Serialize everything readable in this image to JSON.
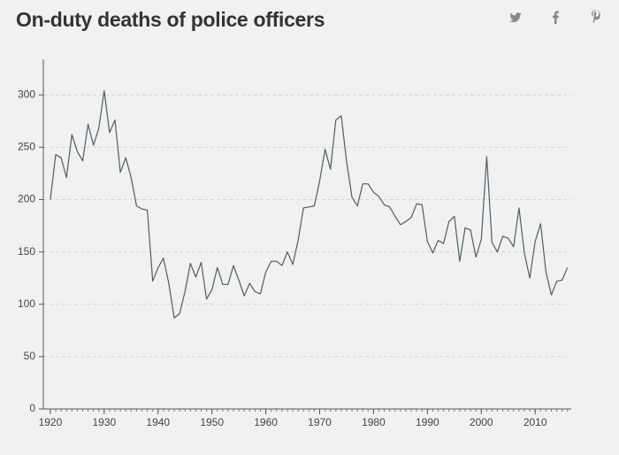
{
  "chart_data": {
    "type": "line",
    "title": "On-duty deaths of police officers",
    "x": [
      1920,
      1921,
      1922,
      1923,
      1924,
      1925,
      1926,
      1927,
      1928,
      1929,
      1930,
      1931,
      1932,
      1933,
      1934,
      1935,
      1936,
      1937,
      1938,
      1939,
      1940,
      1941,
      1942,
      1943,
      1944,
      1945,
      1946,
      1947,
      1948,
      1949,
      1950,
      1951,
      1952,
      1953,
      1954,
      1955,
      1956,
      1957,
      1958,
      1959,
      1960,
      1961,
      1962,
      1963,
      1964,
      1965,
      1966,
      1967,
      1968,
      1969,
      1970,
      1971,
      1972,
      1973,
      1974,
      1975,
      1976,
      1977,
      1978,
      1979,
      1980,
      1981,
      1982,
      1983,
      1984,
      1985,
      1986,
      1987,
      1988,
      1989,
      1990,
      1991,
      1992,
      1993,
      1994,
      1995,
      1996,
      1997,
      1998,
      1999,
      2000,
      2001,
      2002,
      2003,
      2004,
      2005,
      2006,
      2007,
      2008,
      2009,
      2010,
      2011,
      2012,
      2013,
      2014,
      2015,
      2016
    ],
    "series": [
      {
        "color": "#4e5d68",
        "values": [
          200,
          243,
          240,
          221,
          262,
          246,
          237,
          272,
          252,
          268,
          304,
          264,
          276,
          226,
          240,
          221,
          194,
          191,
          190,
          122,
          135,
          144,
          120,
          87,
          91,
          112,
          139,
          126,
          140,
          105,
          114,
          135,
          119,
          119,
          137,
          123,
          108,
          120,
          112,
          110,
          131,
          141,
          141,
          137,
          150,
          138,
          161,
          192,
          193,
          194,
          218,
          248,
          229,
          276,
          280,
          236,
          202,
          194,
          215,
          215,
          207,
          203,
          195,
          193,
          184,
          176,
          179,
          183,
          196,
          195,
          160,
          149,
          161,
          158,
          179,
          184,
          141,
          173,
          171,
          145,
          162,
          241,
          159,
          150,
          165,
          163,
          155,
          192,
          149,
          125,
          160,
          177,
          131,
          109,
          122,
          123,
          135
        ]
      }
    ],
    "xlim": [
      1918.7,
      2016.7
    ],
    "xticks": [
      1920,
      1930,
      1940,
      1950,
      1960,
      1970,
      1980,
      1990,
      2000,
      2010
    ],
    "ylim": [
      0,
      334
    ],
    "yticks": [
      0,
      50,
      100,
      150,
      200,
      250,
      300
    ],
    "grid": true
  }
}
